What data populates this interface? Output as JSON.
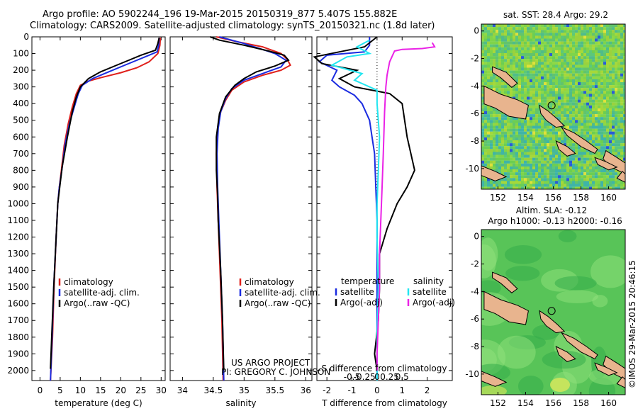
{
  "header": {
    "line1": "Argo profile: AO 5902244_196 19-Mar-2015 20150319_877 5.407S 155.882E",
    "line2": "Climatology: CARS2009. Satellite-adjusted climatology: synTS_20150321.nc (1.8d later)"
  },
  "footer": {
    "project": "US ARGO PROJECT",
    "pi": "PI: GREGORY C. JOHNSON",
    "imos": "©IMOS 29-Mar-2015 20:46:15"
  },
  "colors": {
    "climatology": "#e0201b",
    "satellite": "#1a2be0",
    "argo": "#000000",
    "cyan": "#22e6f0",
    "magenta": "#ea22e6",
    "land": "#e8b48e"
  },
  "chart_data": [
    {
      "type": "line",
      "xlabel": "temperature (deg C)",
      "xlim": [
        -2,
        31
      ],
      "xticks": [
        0,
        5,
        10,
        15,
        20,
        25,
        30
      ],
      "xticklabels": [
        "0",
        "5",
        "10",
        "15",
        "20",
        "25",
        "30"
      ],
      "ylim": [
        0,
        2060
      ],
      "yticks": [
        0,
        100,
        200,
        300,
        400,
        500,
        600,
        700,
        800,
        900,
        1000,
        1100,
        1200,
        1300,
        1400,
        1500,
        1600,
        1700,
        1800,
        1900,
        2000
      ],
      "yticklabels": [
        "0",
        "100",
        "200",
        "300",
        "400",
        "500",
        "600",
        "700",
        "800",
        "900",
        "1000",
        "1100",
        "1200",
        "1300",
        "1400",
        "1500",
        "1600",
        "1700",
        "1800",
        "1900",
        "2000"
      ],
      "legend": {
        "entries": [
          "climatology",
          "satellite-adj. clim.",
          "Argo(..raw -QC)"
        ],
        "placement": "lower-left"
      },
      "series": [
        {
          "name": "climatology",
          "color": "#e0201b",
          "points": [
            [
              29.8,
              5
            ],
            [
              29.7,
              50
            ],
            [
              29.2,
              100
            ],
            [
              27,
              150
            ],
            [
              24,
              185
            ],
            [
              20,
              215
            ],
            [
              15,
              245
            ],
            [
              12,
              265
            ],
            [
              10,
              290
            ],
            [
              9,
              340
            ],
            [
              8,
              420
            ],
            [
              7,
              520
            ],
            [
              6,
              650
            ],
            [
              5.3,
              800
            ],
            [
              4.8,
              900
            ],
            [
              4.4,
              1000
            ],
            [
              4.0,
              1200
            ],
            [
              3.5,
              1500
            ],
            [
              3.1,
              1800
            ],
            [
              2.6,
              2060
            ]
          ]
        },
        {
          "name": "satellite-adj. clim.",
          "color": "#1a2be0",
          "points": [
            [
              29.5,
              5
            ],
            [
              29.4,
              50
            ],
            [
              29,
              90
            ],
            [
              27,
              110
            ],
            [
              24,
              140
            ],
            [
              21,
              170
            ],
            [
              17,
              210
            ],
            [
              13,
              250
            ],
            [
              10.5,
              290
            ],
            [
              9.5,
              340
            ],
            [
              8.5,
              420
            ],
            [
              7.3,
              520
            ],
            [
              6.2,
              650
            ],
            [
              5.4,
              800
            ],
            [
              4.8,
              900
            ],
            [
              4.4,
              1000
            ],
            [
              4.0,
              1200
            ],
            [
              3.4,
              1500
            ],
            [
              3.0,
              1800
            ],
            [
              2.6,
              2060
            ]
          ]
        },
        {
          "name": "Argo(..raw -QC)",
          "color": "#000000",
          "points": [
            [
              29.5,
              5
            ],
            [
              29.2,
              40
            ],
            [
              28.6,
              80
            ],
            [
              25,
              110
            ],
            [
              22,
              140
            ],
            [
              19,
              170
            ],
            [
              15,
              210
            ],
            [
              12,
              250
            ],
            [
              10,
              300
            ],
            [
              9,
              360
            ],
            [
              8,
              450
            ],
            [
              6.8,
              600
            ],
            [
              5.5,
              780
            ],
            [
              4.9,
              900
            ],
            [
              4.4,
              1000
            ],
            [
              4.0,
              1200
            ],
            [
              3.4,
              1500
            ],
            [
              2.9,
              1800
            ],
            [
              2.6,
              1990
            ]
          ]
        }
      ]
    },
    {
      "type": "line",
      "xlabel": "salinity",
      "xlim": [
        33.8,
        36.1
      ],
      "xticks": [
        34,
        34.5,
        35,
        35.5,
        36
      ],
      "xticklabels": [
        "34",
        "34.5",
        "35",
        "35.5",
        "36"
      ],
      "ylim": [
        0,
        2060
      ],
      "legend": {
        "entries": [
          "climatology",
          "satellite-adj. clim.",
          "Argo(..raw -QC)"
        ],
        "placement": "lower-right"
      },
      "series": [
        {
          "name": "climatology",
          "color": "#e0201b",
          "points": [
            [
              34.55,
              0
            ],
            [
              34.9,
              30
            ],
            [
              35.3,
              60
            ],
            [
              35.6,
              100
            ],
            [
              35.7,
              135
            ],
            [
              35.75,
              170
            ],
            [
              35.6,
              200
            ],
            [
              35.3,
              230
            ],
            [
              35.0,
              270
            ],
            [
              34.8,
              320
            ],
            [
              34.7,
              380
            ],
            [
              34.62,
              450
            ],
            [
              34.57,
              550
            ],
            [
              34.55,
              700
            ],
            [
              34.56,
              900
            ],
            [
              34.58,
              1100
            ],
            [
              34.61,
              1400
            ],
            [
              34.64,
              1700
            ],
            [
              34.66,
              2060
            ]
          ]
        },
        {
          "name": "satellite-adj. clim.",
          "color": "#1a2be0",
          "points": [
            [
              34.6,
              0
            ],
            [
              35.0,
              40
            ],
            [
              35.5,
              100
            ],
            [
              35.68,
              140
            ],
            [
              35.6,
              180
            ],
            [
              35.3,
              220
            ],
            [
              35.0,
              260
            ],
            [
              34.8,
              310
            ],
            [
              34.7,
              370
            ],
            [
              34.62,
              450
            ],
            [
              34.58,
              550
            ],
            [
              34.56,
              700
            ],
            [
              34.57,
              900
            ],
            [
              34.59,
              1100
            ],
            [
              34.62,
              1400
            ],
            [
              34.65,
              1700
            ],
            [
              34.67,
              2060
            ]
          ]
        },
        {
          "name": "Argo(..raw -QC)",
          "color": "#000000",
          "points": [
            [
              34.45,
              0
            ],
            [
              34.6,
              20
            ],
            [
              35.0,
              50
            ],
            [
              35.4,
              85
            ],
            [
              35.65,
              110
            ],
            [
              35.72,
              140
            ],
            [
              35.5,
              175
            ],
            [
              35.2,
              210
            ],
            [
              35.0,
              250
            ],
            [
              34.85,
              290
            ],
            [
              34.7,
              360
            ],
            [
              34.6,
              460
            ],
            [
              34.55,
              600
            ],
            [
              34.55,
              800
            ],
            [
              34.57,
              950
            ],
            [
              34.58,
              1100
            ],
            [
              34.62,
              1400
            ],
            [
              34.65,
              1700
            ],
            [
              34.67,
              2000
            ]
          ]
        }
      ]
    },
    {
      "type": "line",
      "xlabel": "T difference from climatology",
      "xlabel_top": "S difference from climatology",
      "xlim": [
        -2.4,
        3.0
      ],
      "xticks": [
        -2,
        -1,
        0,
        1,
        2
      ],
      "xticklabels": [
        "-2",
        "-1",
        "0",
        "1",
        "2"
      ],
      "s_xticks": [
        -1,
        -0.5,
        0,
        0.5,
        1
      ],
      "s_xticklabels": [
        "-0.5",
        "-0.25",
        "0",
        "0.25",
        "0.5"
      ],
      "ylim": [
        0,
        2060
      ],
      "legend": {
        "titles": [
          "temperature",
          "salinity"
        ],
        "entries": [
          "satellite",
          "Argo(-adj)",
          "satellite",
          "Argo(-adj)"
        ],
        "placement": "lower-center"
      },
      "series": [
        {
          "name": "satellite",
          "group": "temperature",
          "color": "#1a2be0",
          "points": [
            [
              -0.3,
              0
            ],
            [
              -0.3,
              50
            ],
            [
              -0.5,
              90
            ],
            [
              -2.0,
              110
            ],
            [
              -2.3,
              150
            ],
            [
              -1.6,
              200
            ],
            [
              -1.8,
              260
            ],
            [
              -1.5,
              300
            ],
            [
              -0.9,
              350
            ],
            [
              -0.6,
              400
            ],
            [
              -0.3,
              500
            ],
            [
              -0.2,
              600
            ],
            [
              -0.1,
              700
            ],
            [
              -0.05,
              900
            ],
            [
              0,
              1100
            ],
            [
              0,
              1500
            ],
            [
              0,
              2060
            ]
          ]
        },
        {
          "name": "Argo(-adj)",
          "group": "temperature",
          "color": "#000000",
          "points": [
            [
              0,
              0
            ],
            [
              -0.5,
              60
            ],
            [
              -1.5,
              90
            ],
            [
              -2.5,
              120
            ],
            [
              -2.2,
              160
            ],
            [
              -0.8,
              200
            ],
            [
              -1.5,
              250
            ],
            [
              -0.9,
              300
            ],
            [
              0.5,
              340
            ],
            [
              1.0,
              400
            ],
            [
              1.2,
              600
            ],
            [
              1.5,
              800
            ],
            [
              1.2,
              900
            ],
            [
              0.8,
              1000
            ],
            [
              0.4,
              1150
            ],
            [
              0.1,
              1300
            ],
            [
              0.1,
              1500
            ],
            [
              0.05,
              1700
            ],
            [
              -0.1,
              1900
            ],
            [
              0,
              2000
            ]
          ]
        },
        {
          "name": "satellite",
          "group": "salinity",
          "color": "#22e6f0",
          "points": [
            [
              -0.3,
              20
            ],
            [
              -0.8,
              60
            ],
            [
              -0.3,
              100
            ],
            [
              -1.2,
              120
            ],
            [
              -1.8,
              170
            ],
            [
              -0.6,
              220
            ],
            [
              -0.9,
              260
            ],
            [
              0.0,
              320
            ],
            [
              0.0,
              400
            ],
            [
              0.1,
              600
            ],
            [
              0.05,
              800
            ],
            [
              0.0,
              1000
            ],
            [
              0.0,
              1200
            ],
            [
              0.05,
              1500
            ],
            [
              0.0,
              1800
            ],
            [
              0.0,
              2060
            ]
          ]
        },
        {
          "name": "Argo(-adj)",
          "group": "salinity",
          "color": "#ea22e6",
          "points": [
            [
              2.2,
              35
            ],
            [
              2.3,
              60
            ],
            [
              1.8,
              70
            ],
            [
              1.0,
              75
            ],
            [
              0.7,
              85
            ],
            [
              0.5,
              150
            ],
            [
              0.4,
              230
            ],
            [
              0.35,
              300
            ],
            [
              0.3,
              450
            ],
            [
              0.25,
              700
            ],
            [
              0.2,
              900
            ],
            [
              0.15,
              1100
            ],
            [
              0.1,
              1300
            ],
            [
              0.1,
              1500
            ],
            [
              0.05,
              1700
            ],
            [
              0.0,
              1900
            ],
            [
              0.0,
              2000
            ]
          ]
        }
      ]
    },
    {
      "type": "heatmap",
      "title": "sat. SST: 28.4 Argo: 29.2",
      "xlim": [
        150.8,
        161.2
      ],
      "ylim": [
        -11.5,
        0.5
      ],
      "xticks": [
        152,
        154,
        156,
        158,
        160
      ],
      "xticklabels": [
        "152",
        "154",
        "156",
        "158",
        "160"
      ],
      "yticks": [
        0,
        -2,
        -4,
        -6,
        -8,
        -10
      ],
      "yticklabels": [
        "0",
        "-2",
        "-4",
        "-6",
        "-8",
        "-10"
      ],
      "marker": {
        "lon": 155.88,
        "lat": -5.41
      }
    },
    {
      "type": "heatmap",
      "title": "Altim. SLA: -0.12",
      "subtitle": "Argo h1000: -0.13 h2000: -0.16",
      "xlim": [
        150.8,
        161.2
      ],
      "ylim": [
        -11.5,
        0.5
      ],
      "xticks": [
        152,
        154,
        156,
        158,
        160
      ],
      "xticklabels": [
        "152",
        "154",
        "156",
        "158",
        "160"
      ],
      "yticks": [
        0,
        -2,
        -4,
        -6,
        -8,
        -10
      ],
      "yticklabels": [
        "0",
        "-2",
        "-4",
        "-6",
        "-8",
        "-10"
      ],
      "marker": {
        "lon": 155.88,
        "lat": -5.41
      }
    }
  ]
}
